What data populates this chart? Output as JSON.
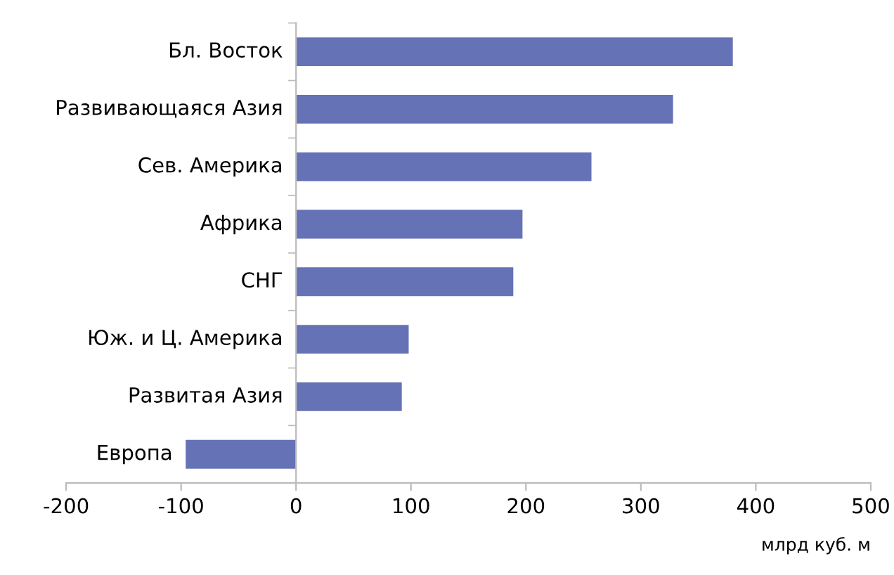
{
  "chart_data": {
    "type": "bar",
    "orientation": "horizontal",
    "categories": [
      "Бл. Восток",
      "Развивающаяся Азия",
      "Сев. Америка",
      "Африка",
      "СНГ",
      "Юж. и Ц. Америка",
      "Развитая Азия",
      "Европа"
    ],
    "values": [
      380,
      328,
      257,
      197,
      189,
      98,
      92,
      -96
    ],
    "color": "#6672b6",
    "xlabel": "млрд куб. м",
    "xlim": [
      -200,
      500
    ],
    "xticks": [
      -200,
      -100,
      0,
      100,
      200,
      300,
      400,
      500
    ],
    "grid": false,
    "legend": false
  }
}
